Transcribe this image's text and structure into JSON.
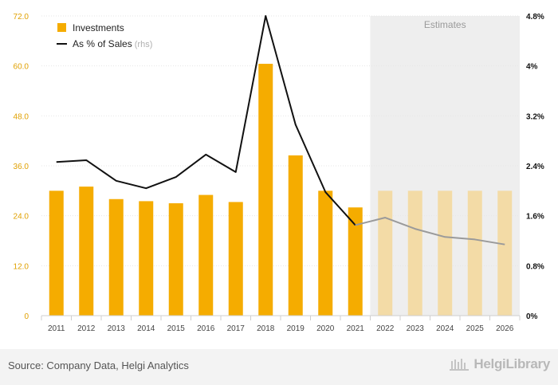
{
  "chart_data": {
    "type": "bar",
    "categories": [
      "2011",
      "2012",
      "2013",
      "2014",
      "2015",
      "2016",
      "2017",
      "2018",
      "2019",
      "2020",
      "2021",
      "2022",
      "2023",
      "2024",
      "2025",
      "2026"
    ],
    "series": [
      {
        "name": "Investments",
        "axis": "left",
        "kind": "bar",
        "values": [
          30.0,
          31.0,
          28.0,
          27.5,
          27.0,
          29.0,
          27.3,
          60.5,
          38.5,
          30.0,
          26.0,
          30.0,
          30.0,
          30.0,
          30.0,
          30.0
        ],
        "estimate_from_index": 11
      },
      {
        "name": "As % of Sales",
        "axis": "right",
        "kind": "line",
        "values": [
          2.46,
          2.49,
          2.16,
          2.04,
          2.22,
          2.58,
          2.3,
          4.8,
          3.06,
          1.98,
          1.45,
          1.57,
          1.39,
          1.26,
          1.22,
          1.14
        ],
        "estimate_from_index": 10
      }
    ],
    "estimate_label": "Estimates",
    "legend": {
      "bar_label": "Investments",
      "line_label": "As % of Sales",
      "line_suffix": "(rhs)",
      "position": "top-left"
    },
    "yleft": {
      "ticks": [
        "0",
        "12.0",
        "24.0",
        "36.0",
        "48.0",
        "60.0",
        "72.0"
      ],
      "range": [
        0,
        72
      ]
    },
    "yright": {
      "ticks": [
        "0%",
        "0.8%",
        "1.6%",
        "2.4%",
        "3.2%",
        "4%",
        "4.8%"
      ],
      "range": [
        0,
        4.8
      ]
    },
    "colors": {
      "bar": "#f5ac00",
      "bar_estimate": "#f3dba6",
      "line": "#111111",
      "line_estimate": "#9a9a9a",
      "estimate_bg": "#eeeeee",
      "left_tick": "#e0a000",
      "right_tick": "#111111"
    }
  },
  "footer": {
    "source": "Source: Company Data, Helgi Analytics",
    "brand": "HelgiLibrary"
  }
}
